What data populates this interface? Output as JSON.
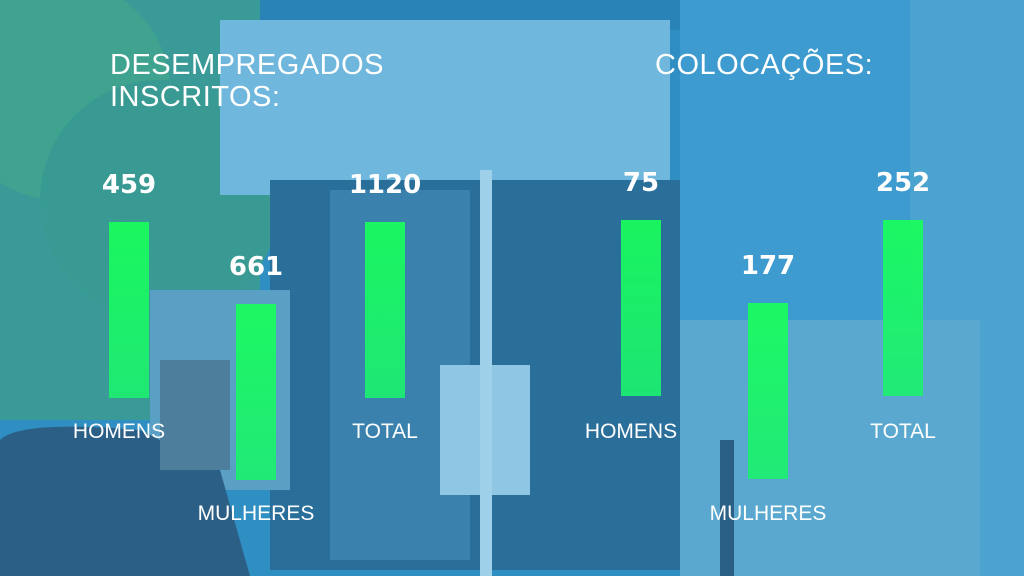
{
  "sections": [
    {
      "title": "DESEMPREGADOS INSCRITOS:",
      "items": [
        {
          "label": "HOMENS",
          "value": 459
        },
        {
          "label": "MULHERES",
          "value": 661
        },
        {
          "label": "TOTAL",
          "value": 1120
        }
      ]
    },
    {
      "title": "COLOCAÇÕES:",
      "items": [
        {
          "label": "HOMENS",
          "value": 75
        },
        {
          "label": "MULHERES",
          "value": 177
        },
        {
          "label": "TOTAL",
          "value": 252
        }
      ]
    }
  ]
}
